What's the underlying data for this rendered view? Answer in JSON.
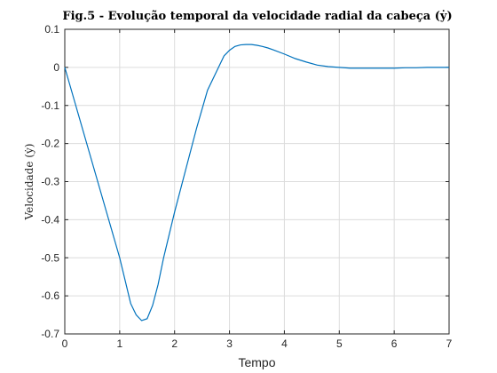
{
  "chart_data": {
    "type": "line",
    "title": "Fig.5 - Evolução temporal da velocidade radial da cabeça (ẏ)",
    "xlabel": "Tempo",
    "ylabel": "Velocidade (ẏ)",
    "xlim": [
      0,
      7
    ],
    "ylim": [
      -0.7,
      0.1
    ],
    "xticks": [
      "0",
      "1",
      "2",
      "3",
      "4",
      "5",
      "6",
      "7"
    ],
    "yticks": [
      "0.1",
      "0",
      "-0.1",
      "-0.2",
      "-0.3",
      "-0.4",
      "-0.5",
      "-0.6",
      "-0.7"
    ],
    "grid": true,
    "colors": {
      "series": "#0072BD"
    },
    "series": [
      {
        "x": [
          0,
          0.2,
          0.4,
          0.6,
          0.8,
          1.0,
          1.2,
          1.3,
          1.4,
          1.5,
          1.6,
          1.7,
          1.8,
          2.0,
          2.2,
          2.4,
          2.6,
          2.8,
          2.9,
          3.0,
          3.1,
          3.2,
          3.3,
          3.4,
          3.5,
          3.6,
          3.7,
          3.8,
          4.0,
          4.2,
          4.4,
          4.6,
          4.8,
          5.0,
          5.2,
          5.4,
          5.6,
          5.8,
          6.0,
          6.2,
          6.4,
          6.6,
          6.8,
          7.0
        ],
        "y": [
          0.0,
          -0.1,
          -0.2,
          -0.3,
          -0.4,
          -0.5,
          -0.62,
          -0.65,
          -0.665,
          -0.66,
          -0.625,
          -0.57,
          -0.5,
          -0.38,
          -0.27,
          -0.16,
          -0.06,
          0.0,
          0.03,
          0.045,
          0.055,
          0.059,
          0.06,
          0.06,
          0.058,
          0.055,
          0.051,
          0.046,
          0.035,
          0.023,
          0.014,
          0.006,
          0.002,
          0.0,
          -0.002,
          -0.002,
          -0.002,
          -0.002,
          -0.002,
          -0.001,
          -0.001,
          0.0,
          0.0,
          0.0
        ]
      }
    ]
  }
}
